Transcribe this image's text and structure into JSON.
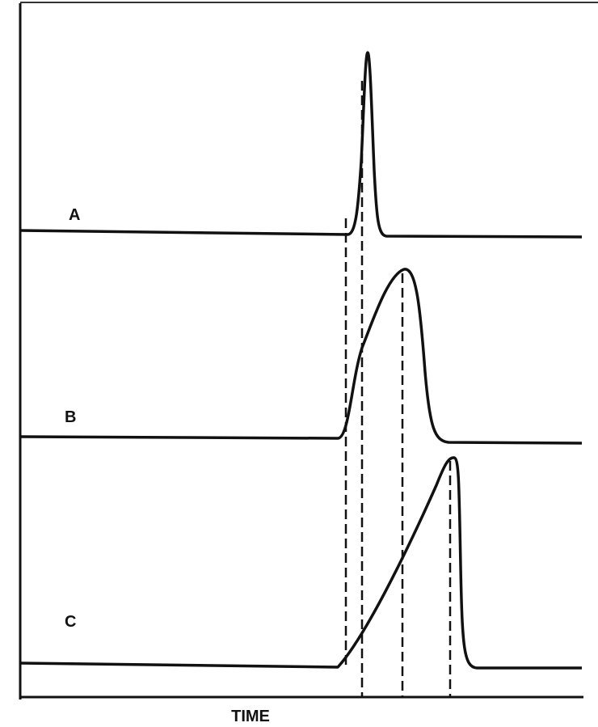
{
  "curves": [
    {
      "label": "A"
    },
    {
      "label": "B"
    },
    {
      "label": "C"
    }
  ],
  "x_axis": {
    "label": "TIME"
  }
}
